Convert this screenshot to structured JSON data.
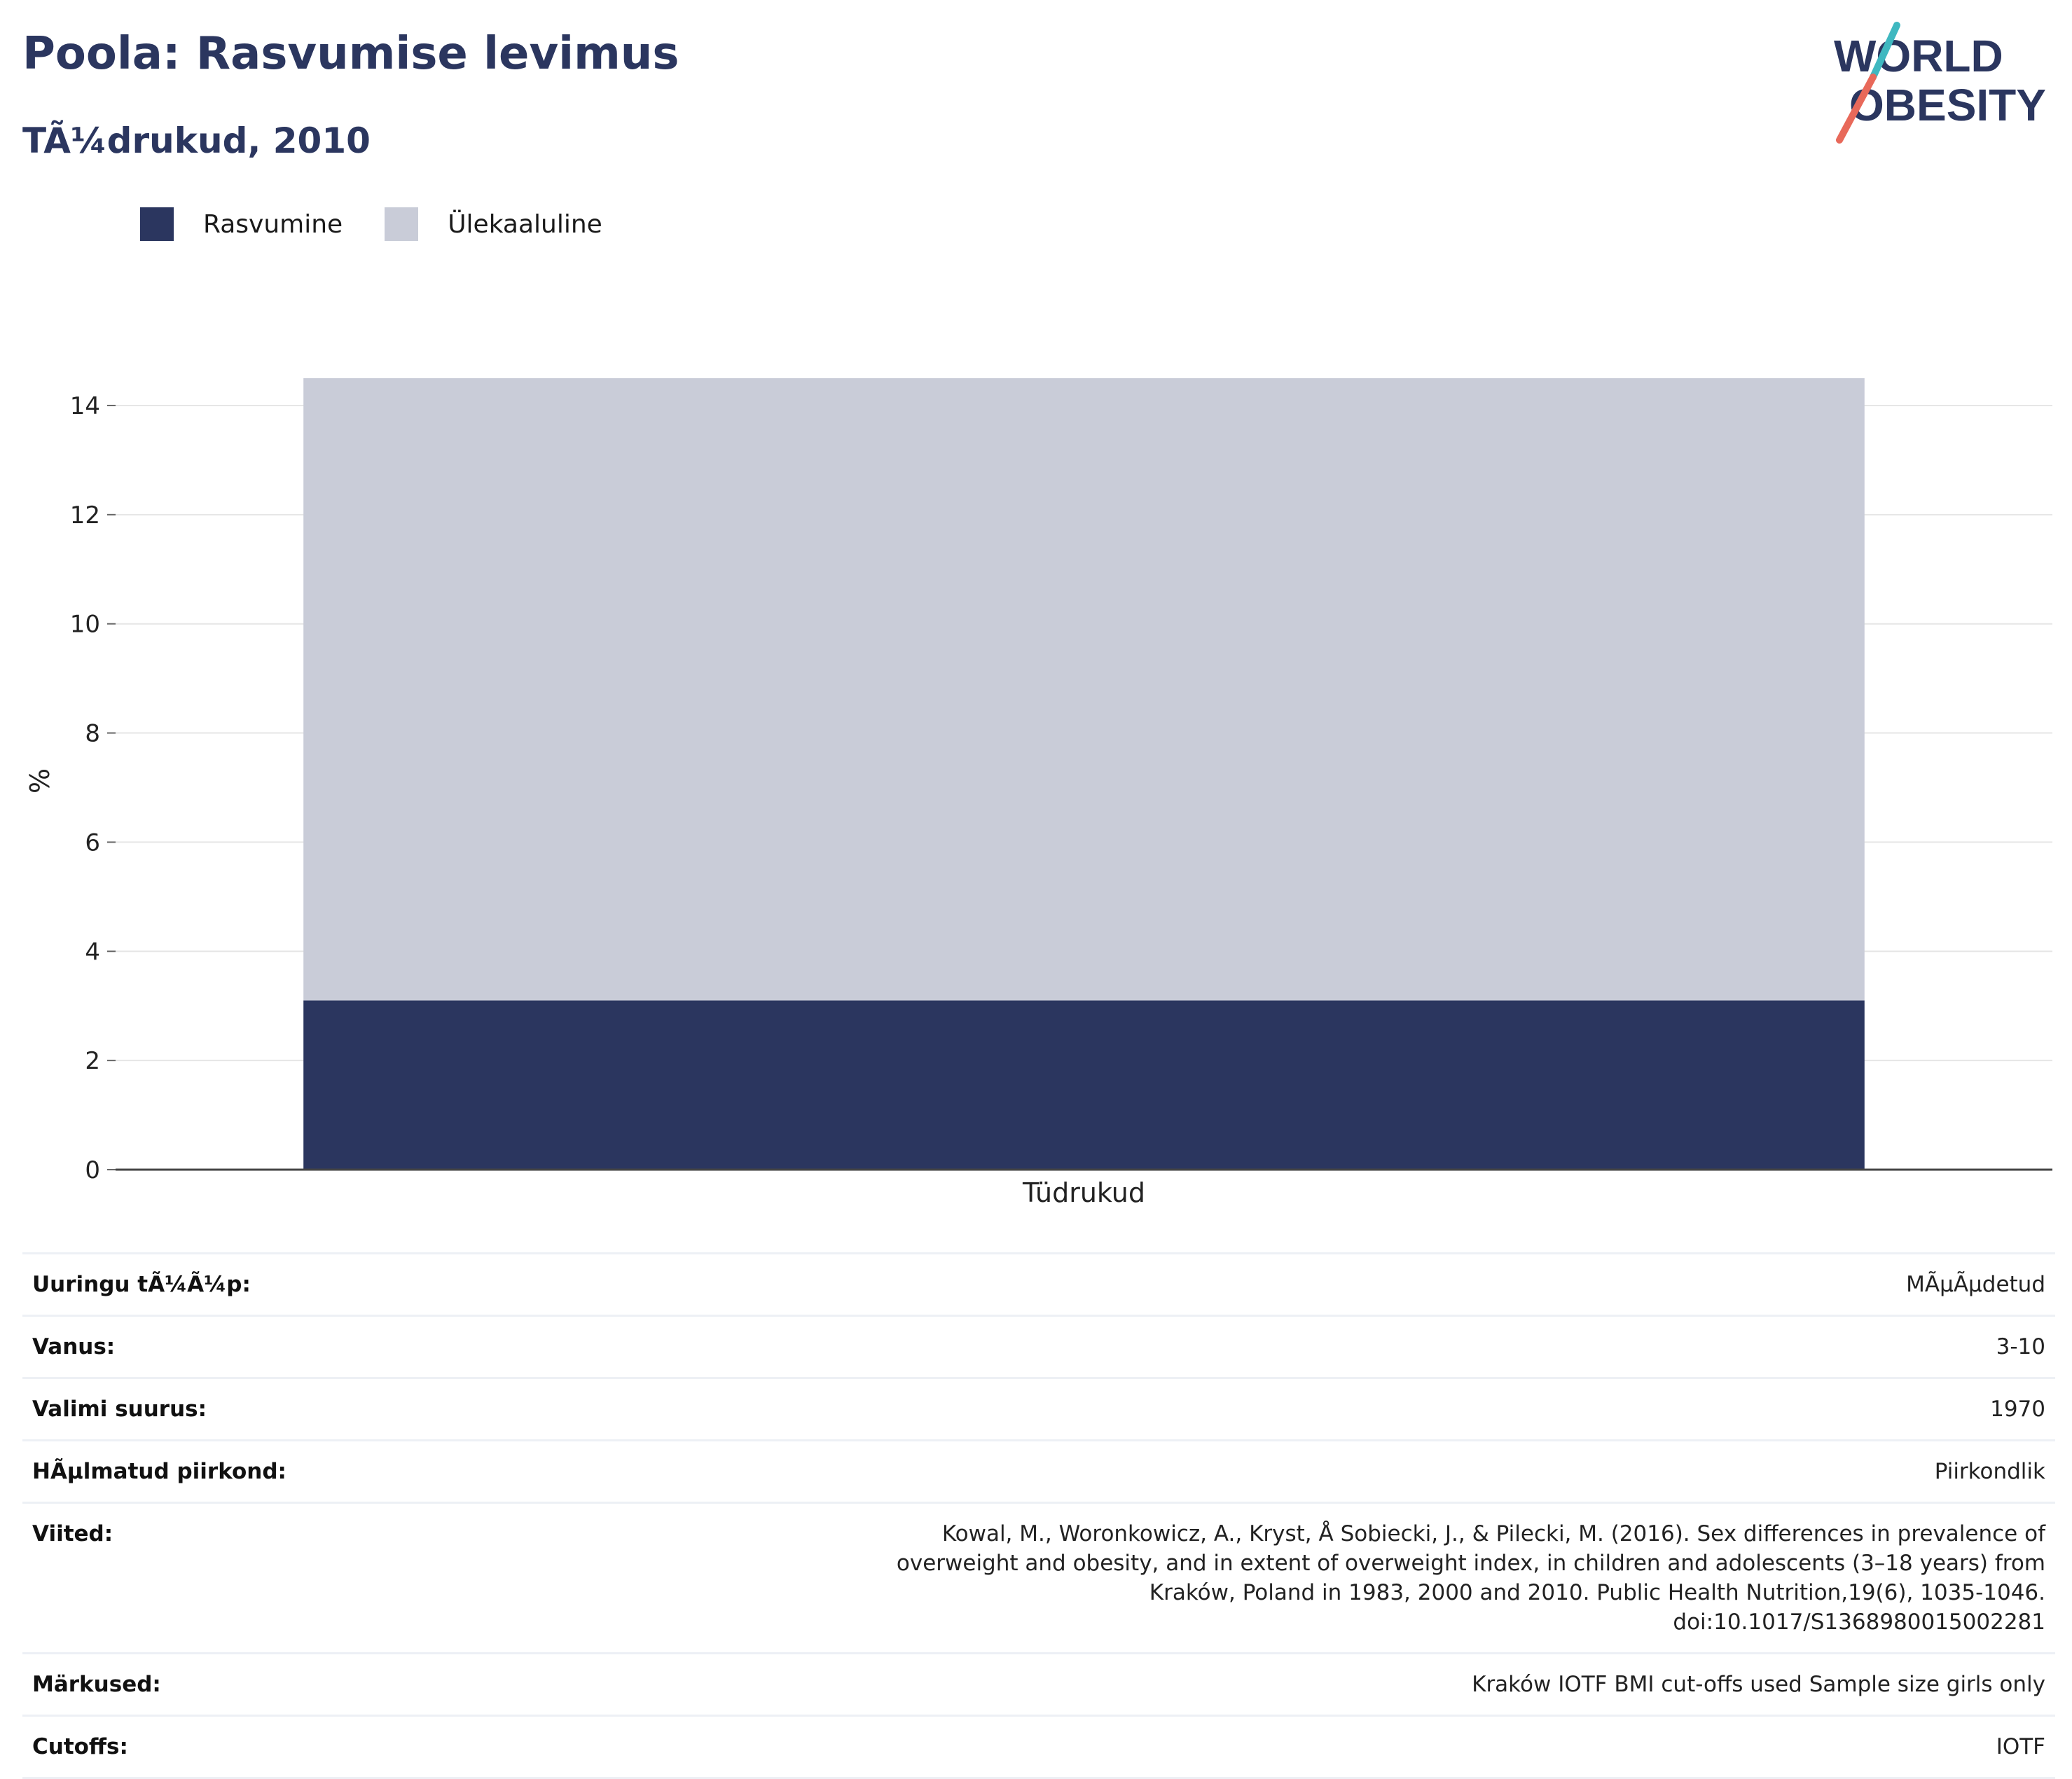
{
  "header": {
    "title": "Poola: Rasvumise levimus",
    "subtitle": "TÃ¼drukud, 2010"
  },
  "logo": {
    "line1": "WORLD",
    "line2": "OBESITY",
    "colors": {
      "text": "#2b365f",
      "slash_top": "#3fb8c0",
      "slash_bottom": "#e8695a"
    }
  },
  "legend": [
    {
      "label": "Rasvumine",
      "color": "#2b365f"
    },
    {
      "label": "Ülekaaluline",
      "color": "#c9ccd8"
    }
  ],
  "chart_data": {
    "type": "bar",
    "stacked": true,
    "categories": [
      "Tüdrukud"
    ],
    "series": [
      {
        "name": "Rasvumine",
        "values": [
          3.1
        ],
        "color": "#2b365f"
      },
      {
        "name": "Ülekaaluline",
        "values": [
          11.4
        ],
        "color": "#c9ccd8"
      }
    ],
    "ylabel": "%",
    "ylim": [
      0,
      14.5
    ],
    "yticks": [
      0,
      2,
      4,
      6,
      8,
      10,
      12,
      14
    ],
    "grid": true,
    "legend_position": "top-left"
  },
  "info": [
    {
      "key": "Uuringu tÃ¼Ã¼p:",
      "value": "MÃµÃµdetud"
    },
    {
      "key": "Vanus:",
      "value": "3-10"
    },
    {
      "key": "Valimi suurus:",
      "value": "1970"
    },
    {
      "key": "HÃµlmatud piirkond:",
      "value": "Piirkondlik"
    },
    {
      "key": "Viited:",
      "value": "Kowal, M., Woronkowicz, A., Kryst, Å Sobiecki, J., & Pilecki, M. (2016). Sex differences in prevalence of overweight and obesity, and in extent of overweight index, in children and adolescents (3–18 years) from Kraków, Poland in 1983, 2000 and 2010. Public Health Nutrition,19(6), 1035-1046. doi:10.1017/S1368980015002281"
    },
    {
      "key": "Märkused:",
      "value": "Kraków IOTF BMI cut-offs used Sample size girls only"
    },
    {
      "key": "Cutoffs:",
      "value": "IOTF"
    }
  ]
}
